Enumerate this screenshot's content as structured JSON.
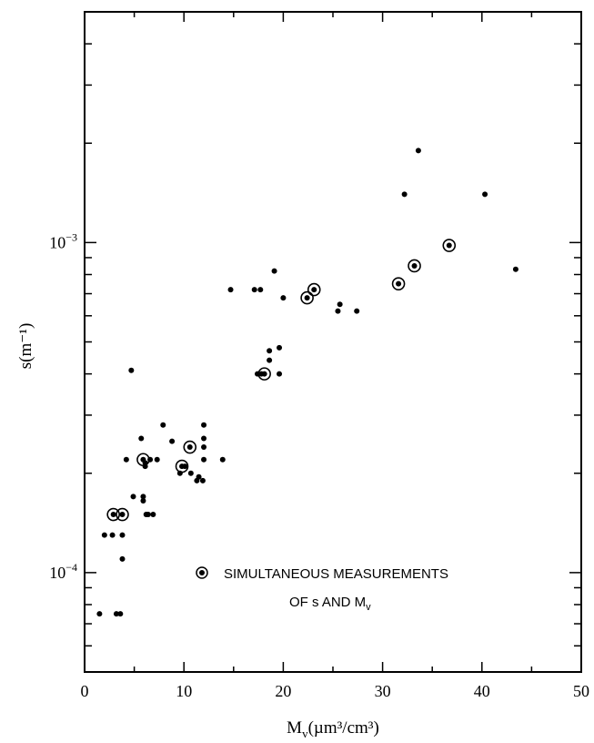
{
  "chart_data": {
    "type": "scatter",
    "title": "",
    "xlabel": "M",
    "xlabel_sub": "v",
    "xlabel_units": "(µm³/cm³)",
    "ylabel": "s(m⁻¹)",
    "xlim": [
      0,
      50
    ],
    "ylim": [
      5e-05,
      0.005
    ],
    "yscale": "log",
    "grid": false,
    "x_ticks": [
      "0",
      "10",
      "20",
      "30",
      "40",
      "50"
    ],
    "y_tick_labels": [
      {
        "value": 0.0001,
        "base": "10",
        "exp": "−4"
      },
      {
        "value": 0.001,
        "base": "10",
        "exp": "−3"
      }
    ],
    "legend": {
      "position": "inside-lower-right",
      "line1": "SIMULTANEOUS MEASUREMENTS",
      "line2": "OF s AND M",
      "line2_sub": "v"
    },
    "series": [
      {
        "marker": "dot",
        "points": [
          [
            1.5,
            7.5e-05
          ],
          [
            2.0,
            0.00013
          ],
          [
            2.8,
            0.00013
          ],
          [
            3.2,
            7.5e-05
          ],
          [
            3.6,
            7.5e-05
          ],
          [
            3.8,
            0.00011
          ],
          [
            3.8,
            0.00013
          ],
          [
            4.2,
            0.00022
          ],
          [
            4.9,
            0.00017
          ],
          [
            5.7,
            0.000255
          ],
          [
            5.9,
            0.00017
          ],
          [
            5.9,
            0.000165
          ],
          [
            6.1,
            0.00021
          ],
          [
            6.1,
            0.000215
          ],
          [
            6.2,
            0.00015
          ],
          [
            6.4,
            0.00015
          ],
          [
            6.6,
            0.00022
          ],
          [
            6.9,
            0.00015
          ],
          [
            7.3,
            0.00022
          ],
          [
            7.9,
            0.00028
          ],
          [
            8.8,
            0.00025
          ],
          [
            9.6,
            0.0002
          ],
          [
            10.1,
            0.00021
          ],
          [
            10.7,
            0.0002
          ],
          [
            11.3,
            0.00019
          ],
          [
            11.5,
            0.000195
          ],
          [
            11.9,
            0.00019
          ],
          [
            12.0,
            0.00028
          ],
          [
            12.0,
            0.000255
          ],
          [
            12.0,
            0.00024
          ],
          [
            12.0,
            0.00022
          ],
          [
            13.9,
            0.00022
          ],
          [
            14.7,
            0.00072
          ],
          [
            17.1,
            0.00072
          ],
          [
            17.7,
            0.00072
          ],
          [
            17.4,
            0.0004
          ],
          [
            17.8,
            0.0004
          ],
          [
            18.6,
            0.00047
          ],
          [
            18.6,
            0.00044
          ],
          [
            19.1,
            0.00082
          ],
          [
            19.6,
            0.0004
          ],
          [
            19.6,
            0.00048
          ],
          [
            20.0,
            0.00068
          ],
          [
            25.5,
            0.00062
          ],
          [
            25.7,
            0.00065
          ],
          [
            27.4,
            0.00062
          ],
          [
            32.2,
            0.0014
          ],
          [
            33.6,
            0.0019
          ],
          [
            40.3,
            0.0014
          ],
          [
            43.4,
            0.00083
          ],
          [
            4.7,
            0.00041
          ]
        ]
      },
      {
        "name": "SIMULTANEOUS MEASUREMENTS OF s AND Mv",
        "marker": "circled-dot",
        "points": [
          [
            2.9,
            0.00015
          ],
          [
            3.8,
            0.00015
          ],
          [
            5.9,
            0.00022
          ],
          [
            9.8,
            0.00021
          ],
          [
            10.6,
            0.00024
          ],
          [
            18.1,
            0.0004
          ],
          [
            22.4,
            0.00068
          ],
          [
            23.1,
            0.00072
          ],
          [
            31.6,
            0.00075
          ],
          [
            33.2,
            0.00085
          ],
          [
            36.7,
            0.00098
          ]
        ]
      }
    ]
  }
}
